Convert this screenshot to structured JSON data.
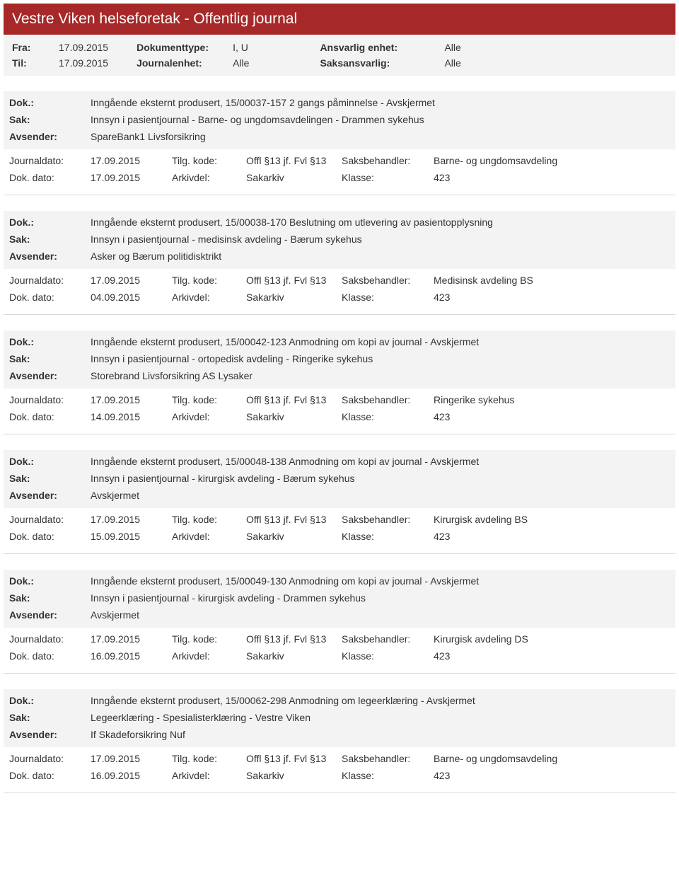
{
  "header": {
    "title": "Vestre Viken helseforetak - Offentlig journal"
  },
  "filters": {
    "fra_label": "Fra:",
    "fra_value": "17.09.2015",
    "til_label": "Til:",
    "til_value": "17.09.2015",
    "doktype_label": "Dokumenttype:",
    "doktype_value": "I, U",
    "journalenhet_label": "Journalenhet:",
    "journalenhet_value": "Alle",
    "ansvarlig_label": "Ansvarlig enhet:",
    "ansvarlig_value": "Alle",
    "saksansvarlig_label": "Saksansvarlig:",
    "saksansvarlig_value": "Alle"
  },
  "labels": {
    "dok": "Dok.:",
    "sak": "Sak:",
    "avsender": "Avsender:",
    "journaldato": "Journaldato:",
    "dokdato": "Dok. dato:",
    "tilgkode": "Tilg. kode:",
    "arkivdel": "Arkivdel:",
    "saksbehandler": "Saksbehandler:",
    "klasse": "Klasse:"
  },
  "entries": [
    {
      "dok": "Inngående eksternt produsert, 15/00037-157 2 gangs påminnelse - Avskjermet",
      "sak": "Innsyn i pasientjournal - Barne- og ungdomsavdelingen - Drammen sykehus",
      "avsender": "SpareBank1 Livsforsikring",
      "journaldato": "17.09.2015",
      "tilgkode": "Offl §13 jf. Fvl §13",
      "saksbehandler": "Barne- og ungdomsavdeling",
      "dokdato": "17.09.2015",
      "arkivdel": "Sakarkiv",
      "klasse": "423"
    },
    {
      "dok": "Inngående eksternt produsert, 15/00038-170 Beslutning om utlevering av pasientopplysning",
      "sak": "Innsyn i pasientjournal - medisinsk avdeling - Bærum sykehus",
      "avsender": "Asker og Bærum politidisktrikt",
      "journaldato": "17.09.2015",
      "tilgkode": "Offl §13 jf. Fvl §13",
      "saksbehandler": "Medisinsk avdeling BS",
      "dokdato": "04.09.2015",
      "arkivdel": "Sakarkiv",
      "klasse": "423"
    },
    {
      "dok": "Inngående eksternt produsert, 15/00042-123 Anmodning om kopi av journal - Avskjermet",
      "sak": "Innsyn i pasientjournal - ortopedisk avdeling - Ringerike sykehus",
      "avsender": "Storebrand Livsforsikring AS Lysaker",
      "journaldato": "17.09.2015",
      "tilgkode": "Offl §13 jf. Fvl §13",
      "saksbehandler": "Ringerike sykehus",
      "dokdato": "14.09.2015",
      "arkivdel": "Sakarkiv",
      "klasse": "423"
    },
    {
      "dok": "Inngående eksternt produsert, 15/00048-138 Anmodning om kopi av journal - Avskjermet",
      "sak": "Innsyn i pasientjournal - kirurgisk avdeling - Bærum sykehus",
      "avsender": "Avskjermet",
      "journaldato": "17.09.2015",
      "tilgkode": "Offl §13 jf. Fvl §13",
      "saksbehandler": "Kirurgisk avdeling BS",
      "dokdato": "15.09.2015",
      "arkivdel": "Sakarkiv",
      "klasse": "423"
    },
    {
      "dok": "Inngående eksternt produsert, 15/00049-130 Anmodning om kopi av journal - Avskjermet",
      "sak": "Innsyn i pasientjournal - kirurgisk avdeling - Drammen sykehus",
      "avsender": "Avskjermet",
      "journaldato": "17.09.2015",
      "tilgkode": "Offl §13 jf. Fvl §13",
      "saksbehandler": "Kirurgisk avdeling DS",
      "dokdato": "16.09.2015",
      "arkivdel": "Sakarkiv",
      "klasse": "423"
    },
    {
      "dok": "Inngående eksternt produsert, 15/00062-298 Anmodning om legeerklæring - Avskjermet",
      "sak": "Legeerklæring - Spesialisterklæring - Vestre Viken",
      "avsender": "If Skadeforsikring Nuf",
      "journaldato": "17.09.2015",
      "tilgkode": "Offl §13 jf. Fvl §13",
      "saksbehandler": "Barne- og ungdomsavdeling",
      "dokdato": "16.09.2015",
      "arkivdel": "Sakarkiv",
      "klasse": "423"
    }
  ]
}
